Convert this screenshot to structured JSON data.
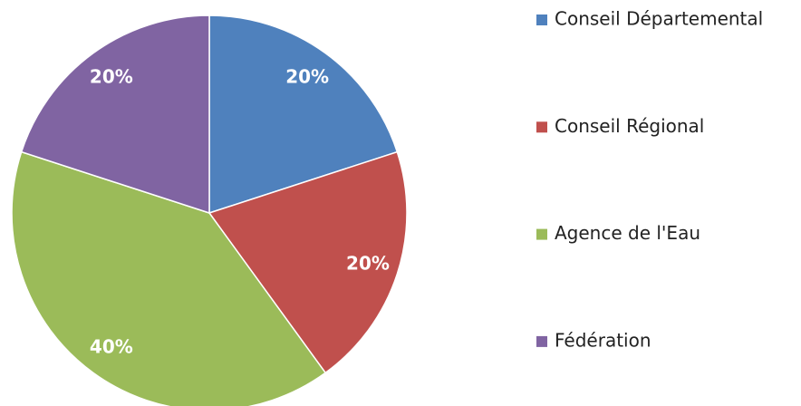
{
  "chart_data": {
    "type": "pie",
    "categories": [
      "Conseil Départemental",
      "Conseil Régional",
      "Agence de l'Eau",
      "Fédération"
    ],
    "values": [
      20,
      20,
      40,
      20
    ],
    "value_labels": [
      "20%",
      "20%",
      "40%",
      "20%"
    ],
    "colors": [
      "#4f81bd",
      "#c0504d",
      "#9bbb59",
      "#8064a2"
    ],
    "legend": "right"
  }
}
